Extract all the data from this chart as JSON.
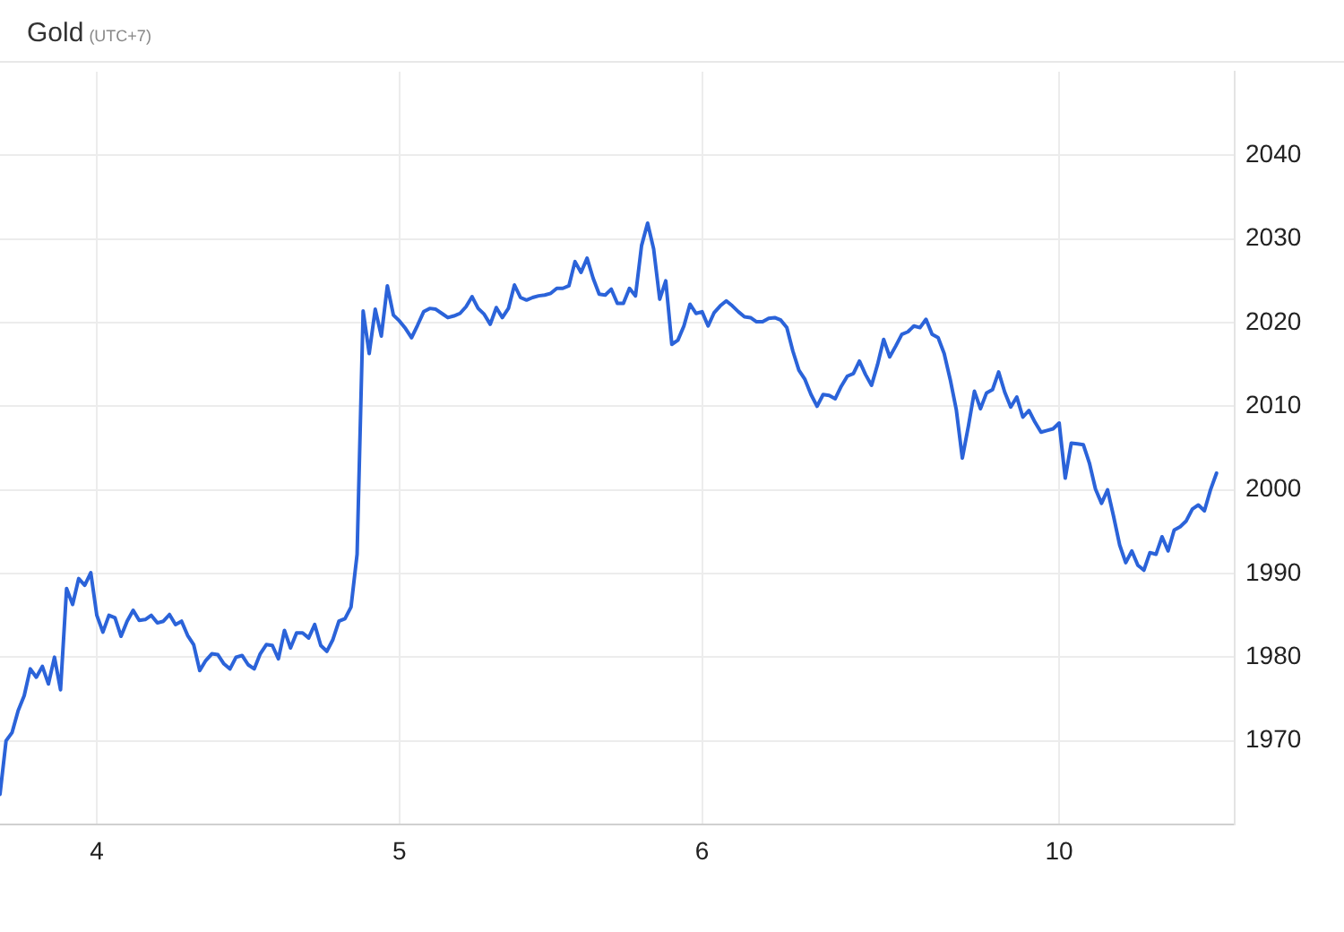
{
  "chart_data": {
    "type": "line",
    "title": "Gold",
    "subtitle": "(UTC+7)",
    "categories": [
      null,
      null,
      null,
      null,
      null,
      null,
      null,
      null,
      null,
      null,
      null,
      null,
      null,
      null,
      null,
      null,
      "4",
      null,
      null,
      null,
      null,
      null,
      null,
      null,
      null,
      null,
      null,
      null,
      null,
      null,
      null,
      null,
      null,
      null,
      null,
      null,
      null,
      null,
      null,
      null,
      null,
      null,
      null,
      null,
      null,
      null,
      null,
      null,
      null,
      null,
      null,
      null,
      null,
      null,
      null,
      null,
      null,
      null,
      null,
      null,
      null,
      null,
      null,
      null,
      null,
      null,
      "5",
      null,
      null,
      null,
      null,
      null,
      null,
      null,
      null,
      null,
      null,
      null,
      null,
      null,
      null,
      null,
      null,
      null,
      null,
      null,
      null,
      null,
      null,
      null,
      null,
      null,
      null,
      null,
      null,
      null,
      null,
      null,
      null,
      null,
      null,
      null,
      null,
      null,
      null,
      null,
      null,
      null,
      null,
      null,
      null,
      null,
      null,
      null,
      null,
      null,
      "6",
      null,
      null,
      null,
      null,
      null,
      null,
      null,
      null,
      null,
      null,
      null,
      null,
      null,
      null,
      null,
      null,
      null,
      null,
      null,
      null,
      null,
      null,
      null,
      null,
      null,
      null,
      null,
      null,
      null,
      null,
      null,
      null,
      null,
      null,
      null,
      null,
      null,
      null,
      null,
      null,
      null,
      null,
      null,
      null,
      null,
      null,
      null,
      null,
      null,
      null,
      null,
      null,
      null,
      null,
      null,
      null,
      null,
      null,
      "10",
      null,
      null,
      null,
      null,
      null,
      null,
      null,
      null,
      null,
      null,
      null,
      null,
      null,
      null,
      null,
      null,
      null,
      null,
      null,
      null,
      null,
      null,
      null,
      null,
      null,
      null,
      null,
      null,
      null
    ],
    "series": [
      {
        "color": "#2b63d9",
        "values": [
          1963.6,
          1970.0,
          1971.0,
          1973.6,
          1975.4,
          1978.6,
          1977.6,
          1978.9,
          1976.8,
          1980.0,
          1976.1,
          1988.2,
          1986.3,
          1989.4,
          1988.6,
          1990.1,
          1985.0,
          1983.0,
          1985.0,
          1984.7,
          1982.5,
          1984.3,
          1985.6,
          1984.4,
          1984.5,
          1985.0,
          1984.1,
          1984.3,
          1985.1,
          1983.9,
          1984.3,
          1982.6,
          1981.5,
          1978.4,
          1979.6,
          1980.4,
          1980.3,
          1979.2,
          1978.6,
          1980.0,
          1980.2,
          1979.1,
          1978.6,
          1980.4,
          1981.5,
          1981.4,
          1979.8,
          1983.2,
          1981.1,
          1982.9,
          1982.9,
          1982.3,
          1983.9,
          1981.4,
          1980.7,
          1982.1,
          1984.3,
          1984.6,
          1986.0,
          1992.3,
          2021.4,
          2016.3,
          2021.6,
          2018.4,
          2024.4,
          2020.9,
          2020.2,
          2019.3,
          2018.2,
          2019.7,
          2021.3,
          2021.7,
          2021.6,
          2021.1,
          2020.6,
          2020.8,
          2021.1,
          2021.9,
          2023.1,
          2021.7,
          2021.0,
          2019.8,
          2021.8,
          2020.6,
          2021.7,
          2024.5,
          2023.0,
          2022.7,
          2023.0,
          2023.2,
          2023.3,
          2023.5,
          2024.1,
          2024.1,
          2024.4,
          2027.3,
          2026.0,
          2027.7,
          2025.3,
          2023.4,
          2023.3,
          2024.0,
          2022.3,
          2022.3,
          2024.1,
          2023.2,
          2029.2,
          2031.9,
          2028.8,
          2022.8,
          2025.0,
          2017.4,
          2017.9,
          2019.6,
          2022.2,
          2021.1,
          2021.3,
          2019.6,
          2021.2,
          2022.0,
          2022.6,
          2022.0,
          2021.3,
          2020.7,
          2020.6,
          2020.1,
          2020.1,
          2020.5,
          2020.6,
          2020.3,
          2019.4,
          2016.6,
          2014.3,
          2013.2,
          2011.4,
          2010.0,
          2011.4,
          2011.3,
          2010.9,
          2012.4,
          2013.6,
          2013.9,
          2015.4,
          2013.8,
          2012.5,
          2015.0,
          2018.0,
          2015.9,
          2017.2,
          2018.6,
          2018.9,
          2019.6,
          2019.4,
          2020.4,
          2018.6,
          2018.2,
          2016.3,
          2013.2,
          2009.6,
          2003.8,
          2007.6,
          2011.8,
          2009.7,
          2011.6,
          2012.0,
          2014.1,
          2011.7,
          2009.9,
          2011.1,
          2008.7,
          2009.5,
          2008.1,
          2006.9,
          2007.1,
          2007.3,
          2008.0,
          2001.4,
          2005.6,
          2005.5,
          2005.4,
          2003.2,
          2000.1,
          1998.4,
          2000.0,
          1996.8,
          1993.4,
          1991.3,
          1992.7,
          1991.0,
          1990.4,
          1992.5,
          1992.3,
          1994.4,
          1992.7,
          1995.2,
          1995.6,
          1996.3,
          1997.7,
          1998.2,
          1997.5,
          2000.0,
          2002.0,
          null,
          null,
          null
        ]
      }
    ],
    "ylim": [
      1960,
      2050
    ],
    "yticks": [
      1970,
      1980,
      1990,
      2000,
      2010,
      2020,
      2030,
      2040
    ],
    "grid": true
  }
}
